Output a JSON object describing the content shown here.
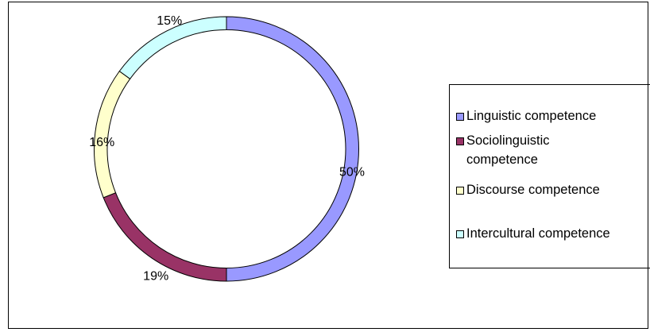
{
  "chart_data": {
    "type": "donut",
    "categories": [
      "Linguistic competence",
      "Sociolinguistic competence",
      "Discourse competence",
      "Intercultural competence"
    ],
    "values": [
      50,
      19,
      16,
      15
    ],
    "value_labels": [
      "50%",
      "19%",
      "16%",
      "15%"
    ],
    "colors": [
      "#9999ff",
      "#993366",
      "#ffffcc",
      "#ccffff"
    ],
    "legend": "right"
  }
}
